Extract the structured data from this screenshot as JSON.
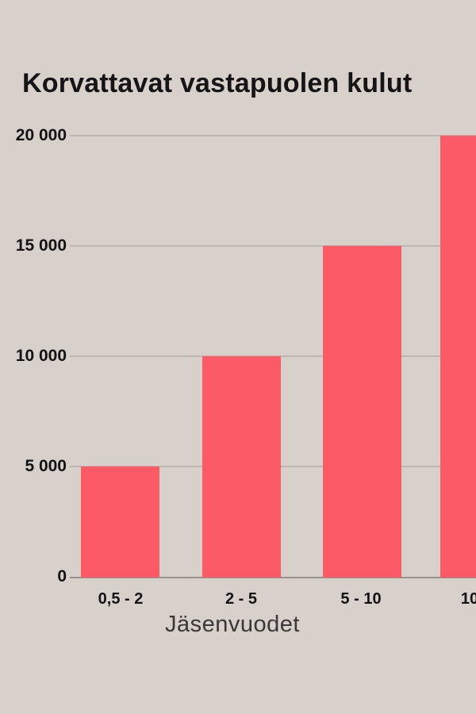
{
  "title": "Korvattavat vastapuolen kulut",
  "colors": {
    "bar": "#fd5a67",
    "background": "#d7d0cb",
    "title_text": "#161414",
    "tick_text": "#141212",
    "axis_label_text": "#3a3734",
    "gridline": "#bcb5b0",
    "baseline": "#98928d"
  },
  "chart_data": {
    "type": "bar",
    "title": "Korvattavat vastapuolen kulut",
    "xlabel": "Jäsenvuodet",
    "ylabel": "",
    "categories": [
      "0,5 - 2",
      "2 - 5",
      "5 - 10",
      "10"
    ],
    "values": [
      5000,
      10000,
      15000,
      20000
    ],
    "ylim": [
      0,
      20000
    ],
    "yticks": [
      0,
      5000,
      10000,
      15000,
      20000
    ],
    "ytick_labels": [
      "0",
      "5 000",
      "10 000",
      "15 000",
      "20 000"
    ],
    "grid": true,
    "legend": false
  }
}
